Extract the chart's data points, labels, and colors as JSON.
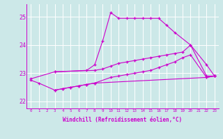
{
  "xlabel": "Windchill (Refroidissement éolien,°C)",
  "bg_color": "#cce8e8",
  "grid_color": "#ffffff",
  "line_color": "#cc00cc",
  "xmin": -0.5,
  "xmax": 23.5,
  "ymin": 21.75,
  "ymax": 25.45,
  "yticks": [
    22,
    23,
    24,
    25
  ],
  "xticks": [
    0,
    1,
    2,
    3,
    4,
    5,
    6,
    7,
    8,
    9,
    10,
    11,
    12,
    13,
    14,
    15,
    16,
    17,
    18,
    19,
    20,
    21,
    22,
    23
  ],
  "series": [
    {
      "x": [
        0,
        3,
        7,
        8,
        9,
        10,
        11,
        12,
        13,
        14,
        15,
        16,
        17,
        18,
        20,
        22,
        23
      ],
      "y": [
        22.8,
        23.05,
        23.1,
        23.3,
        24.15,
        25.15,
        24.95,
        24.95,
        24.95,
        24.95,
        24.95,
        24.95,
        24.7,
        24.45,
        24.0,
        22.9,
        22.9
      ]
    },
    {
      "x": [
        3,
        8,
        9,
        10,
        11,
        12,
        13,
        14,
        15,
        16,
        17,
        18,
        19,
        20,
        22,
        23
      ],
      "y": [
        23.05,
        23.1,
        23.15,
        23.25,
        23.35,
        23.4,
        23.45,
        23.5,
        23.55,
        23.6,
        23.65,
        23.7,
        23.75,
        24.0,
        23.3,
        22.9
      ]
    },
    {
      "x": [
        3,
        4,
        5,
        6,
        7,
        8,
        10,
        11,
        12,
        13,
        14,
        15,
        16,
        17,
        18,
        19,
        20,
        22,
        23
      ],
      "y": [
        22.4,
        22.45,
        22.5,
        22.55,
        22.6,
        22.65,
        22.85,
        22.9,
        22.95,
        23.0,
        23.05,
        23.1,
        23.2,
        23.3,
        23.4,
        23.55,
        23.65,
        22.85,
        22.9
      ]
    },
    {
      "x": [
        0,
        1,
        3,
        4,
        5,
        6,
        7,
        8,
        22,
        23
      ],
      "y": [
        22.75,
        22.65,
        22.4,
        22.45,
        22.5,
        22.55,
        22.6,
        22.65,
        22.85,
        22.9
      ]
    }
  ]
}
